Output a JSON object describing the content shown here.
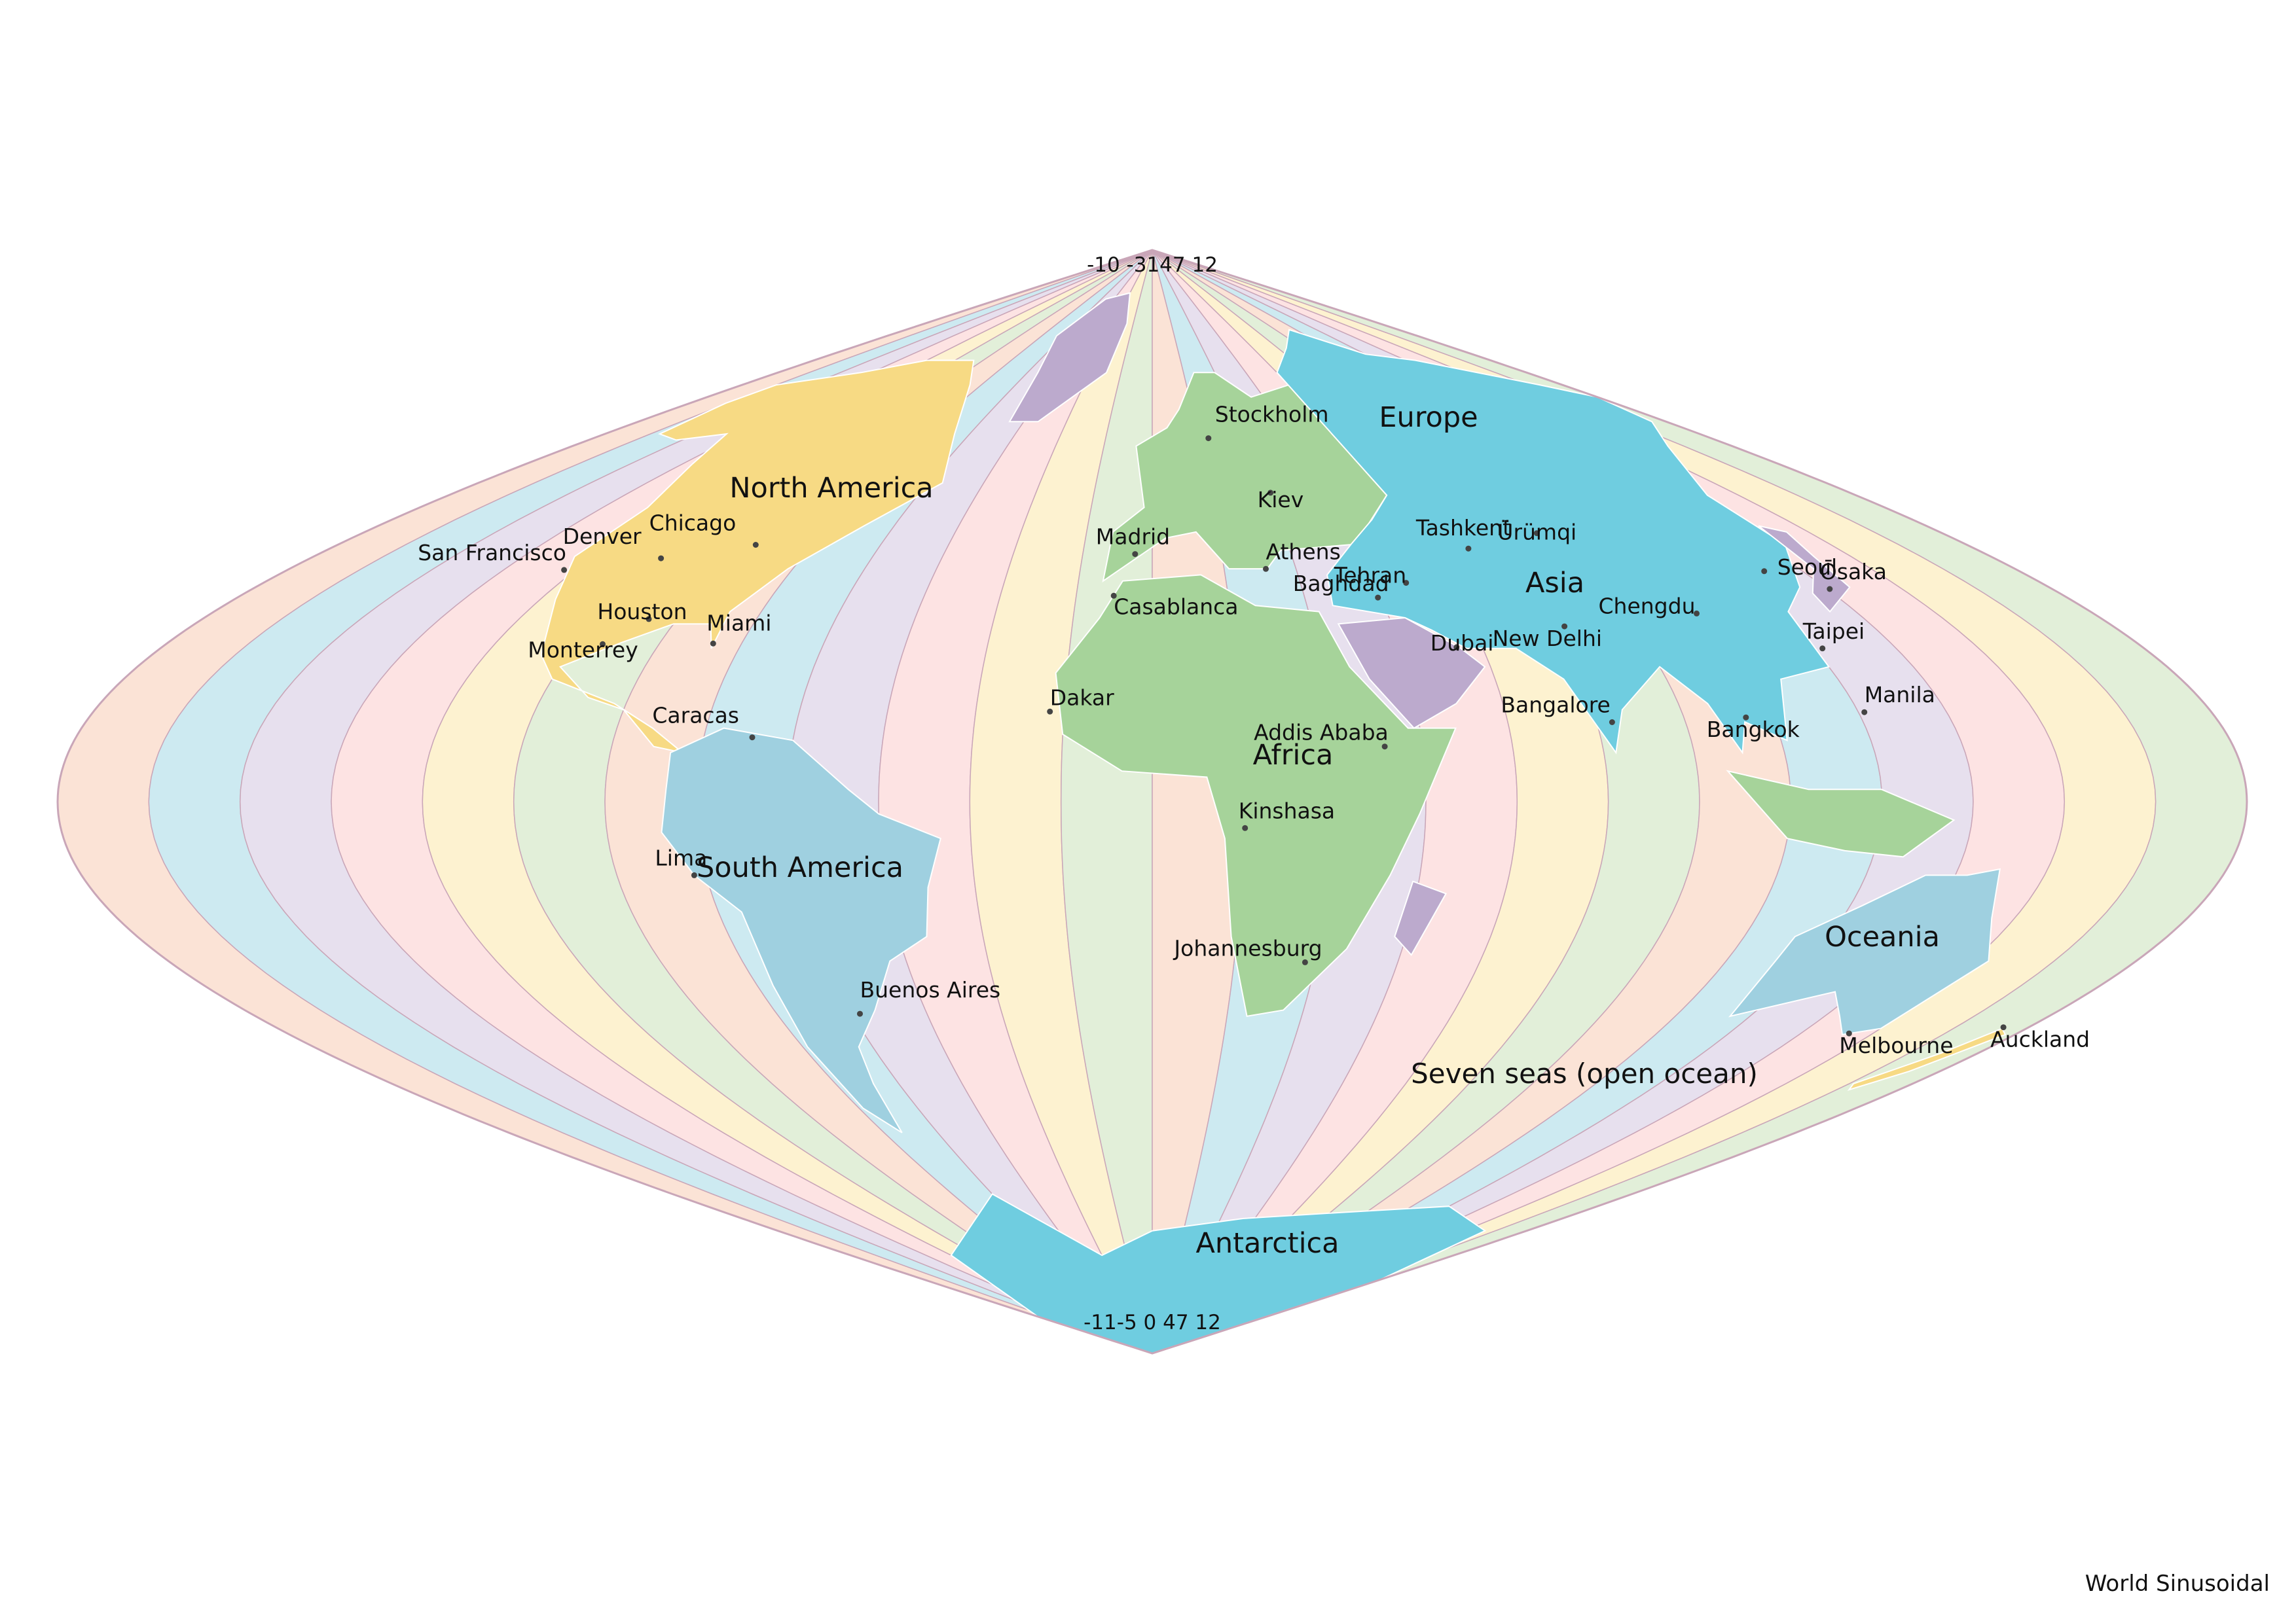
{
  "title": "World Sinusoidal",
  "colors": {
    "tz_bands": [
      "#fbe3d6",
      "#cdeaf1",
      "#e7e0ee",
      "#fde3e3",
      "#fdf2d0",
      "#e2efd9"
    ],
    "band_border": "#c9a6b8",
    "continent_fills": [
      "#9fd0e0",
      "#f4a7a1",
      "#bcaacd",
      "#a6d39a",
      "#f7da84",
      "#f6c08f",
      "#6fcde0"
    ],
    "country_border": "#ffffff"
  },
  "map": {
    "top_timezone_labels": "-10 -3147 12",
    "bottom_timezone_labels": "-11-5 0 47 12",
    "continents": [
      {
        "name": "North America",
        "key": "north-america"
      },
      {
        "name": "South America",
        "key": "south-america"
      },
      {
        "name": "Europe",
        "key": "europe"
      },
      {
        "name": "Africa",
        "key": "africa"
      },
      {
        "name": "Asia",
        "key": "asia"
      },
      {
        "name": "Oceania",
        "key": "oceania"
      },
      {
        "name": "Antarctica",
        "key": "antarctica"
      }
    ],
    "ocean_label": "Seven seas (open ocean)",
    "cities": [
      {
        "name": "San Francisco",
        "key": "san-francisco",
        "lon": -122.4,
        "lat": 37.8
      },
      {
        "name": "Chicago",
        "key": "chicago",
        "lon": -87.6,
        "lat": 41.9
      },
      {
        "name": "Denver",
        "key": "denver",
        "lon": -105.0,
        "lat": 39.7
      },
      {
        "name": "Houston",
        "key": "houston",
        "lon": -95.4,
        "lat": 29.8
      },
      {
        "name": "Miami",
        "key": "miami",
        "lon": -80.2,
        "lat": 25.8
      },
      {
        "name": "Monterrey",
        "key": "monterrey",
        "lon": -100.3,
        "lat": 25.7
      },
      {
        "name": "Caracas",
        "key": "caracas",
        "lon": -66.9,
        "lat": 10.5
      },
      {
        "name": "Lima",
        "key": "lima",
        "lon": -77.0,
        "lat": -12.0
      },
      {
        "name": "Buenos Aires",
        "key": "buenos-aires",
        "lon": -58.4,
        "lat": -34.6
      },
      {
        "name": "Stockholm",
        "key": "stockholm",
        "lon": 18.1,
        "lat": 59.3
      },
      {
        "name": "Kiev",
        "key": "kiev",
        "lon": 30.5,
        "lat": 50.4
      },
      {
        "name": "Madrid",
        "key": "madrid",
        "lon": -3.7,
        "lat": 40.4
      },
      {
        "name": "Athens",
        "key": "athens",
        "lon": 23.7,
        "lat": 37.98
      },
      {
        "name": "Casablanca",
        "key": "casablanca",
        "lon": -7.6,
        "lat": 33.6
      },
      {
        "name": "Baghdad",
        "key": "baghdad",
        "lon": 44.4,
        "lat": 33.3
      },
      {
        "name": "Tehran",
        "key": "tehran",
        "lon": 51.4,
        "lat": 35.7
      },
      {
        "name": "Tashkent",
        "key": "tashkent",
        "lon": 69.2,
        "lat": 41.3
      },
      {
        "name": "Ürümqi",
        "key": "urumqi",
        "lon": 87.6,
        "lat": 43.8
      },
      {
        "name": "Chengdu",
        "key": "chengdu",
        "lon": 104.1,
        "lat": 30.7
      },
      {
        "name": "Seoul",
        "key": "seoul",
        "lon": 127.0,
        "lat": 37.6
      },
      {
        "name": "Ōsaka",
        "key": "osaka",
        "lon": 135.5,
        "lat": 34.7
      },
      {
        "name": "Dubai",
        "key": "dubai",
        "lon": 55.3,
        "lat": 25.2
      },
      {
        "name": "New Delhi",
        "key": "new-delhi",
        "lon": 77.2,
        "lat": 28.6
      },
      {
        "name": "Taipei",
        "key": "taipei",
        "lon": 121.6,
        "lat": 25.0
      },
      {
        "name": "Dakar",
        "key": "dakar",
        "lon": -17.4,
        "lat": 14.7
      },
      {
        "name": "Addis Ababa",
        "key": "addis-ababa",
        "lon": 38.7,
        "lat": 9.0
      },
      {
        "name": "Bangalore",
        "key": "bangalore",
        "lon": 77.6,
        "lat": 12.97
      },
      {
        "name": "Manila",
        "key": "manila",
        "lon": 121.0,
        "lat": 14.6
      },
      {
        "name": "Bangkok",
        "key": "bangkok",
        "lon": 100.5,
        "lat": 13.75
      },
      {
        "name": "Kinshasa",
        "key": "kinshasa",
        "lon": 15.3,
        "lat": -4.3
      },
      {
        "name": "Johannesburg",
        "key": "johannesburg",
        "lon": 28.0,
        "lat": -26.2
      },
      {
        "name": "Melbourne",
        "key": "melbourne",
        "lon": 145.0,
        "lat": -37.8
      },
      {
        "name": "Auckland",
        "key": "auckland",
        "lon": 174.8,
        "lat": -36.8
      }
    ]
  }
}
